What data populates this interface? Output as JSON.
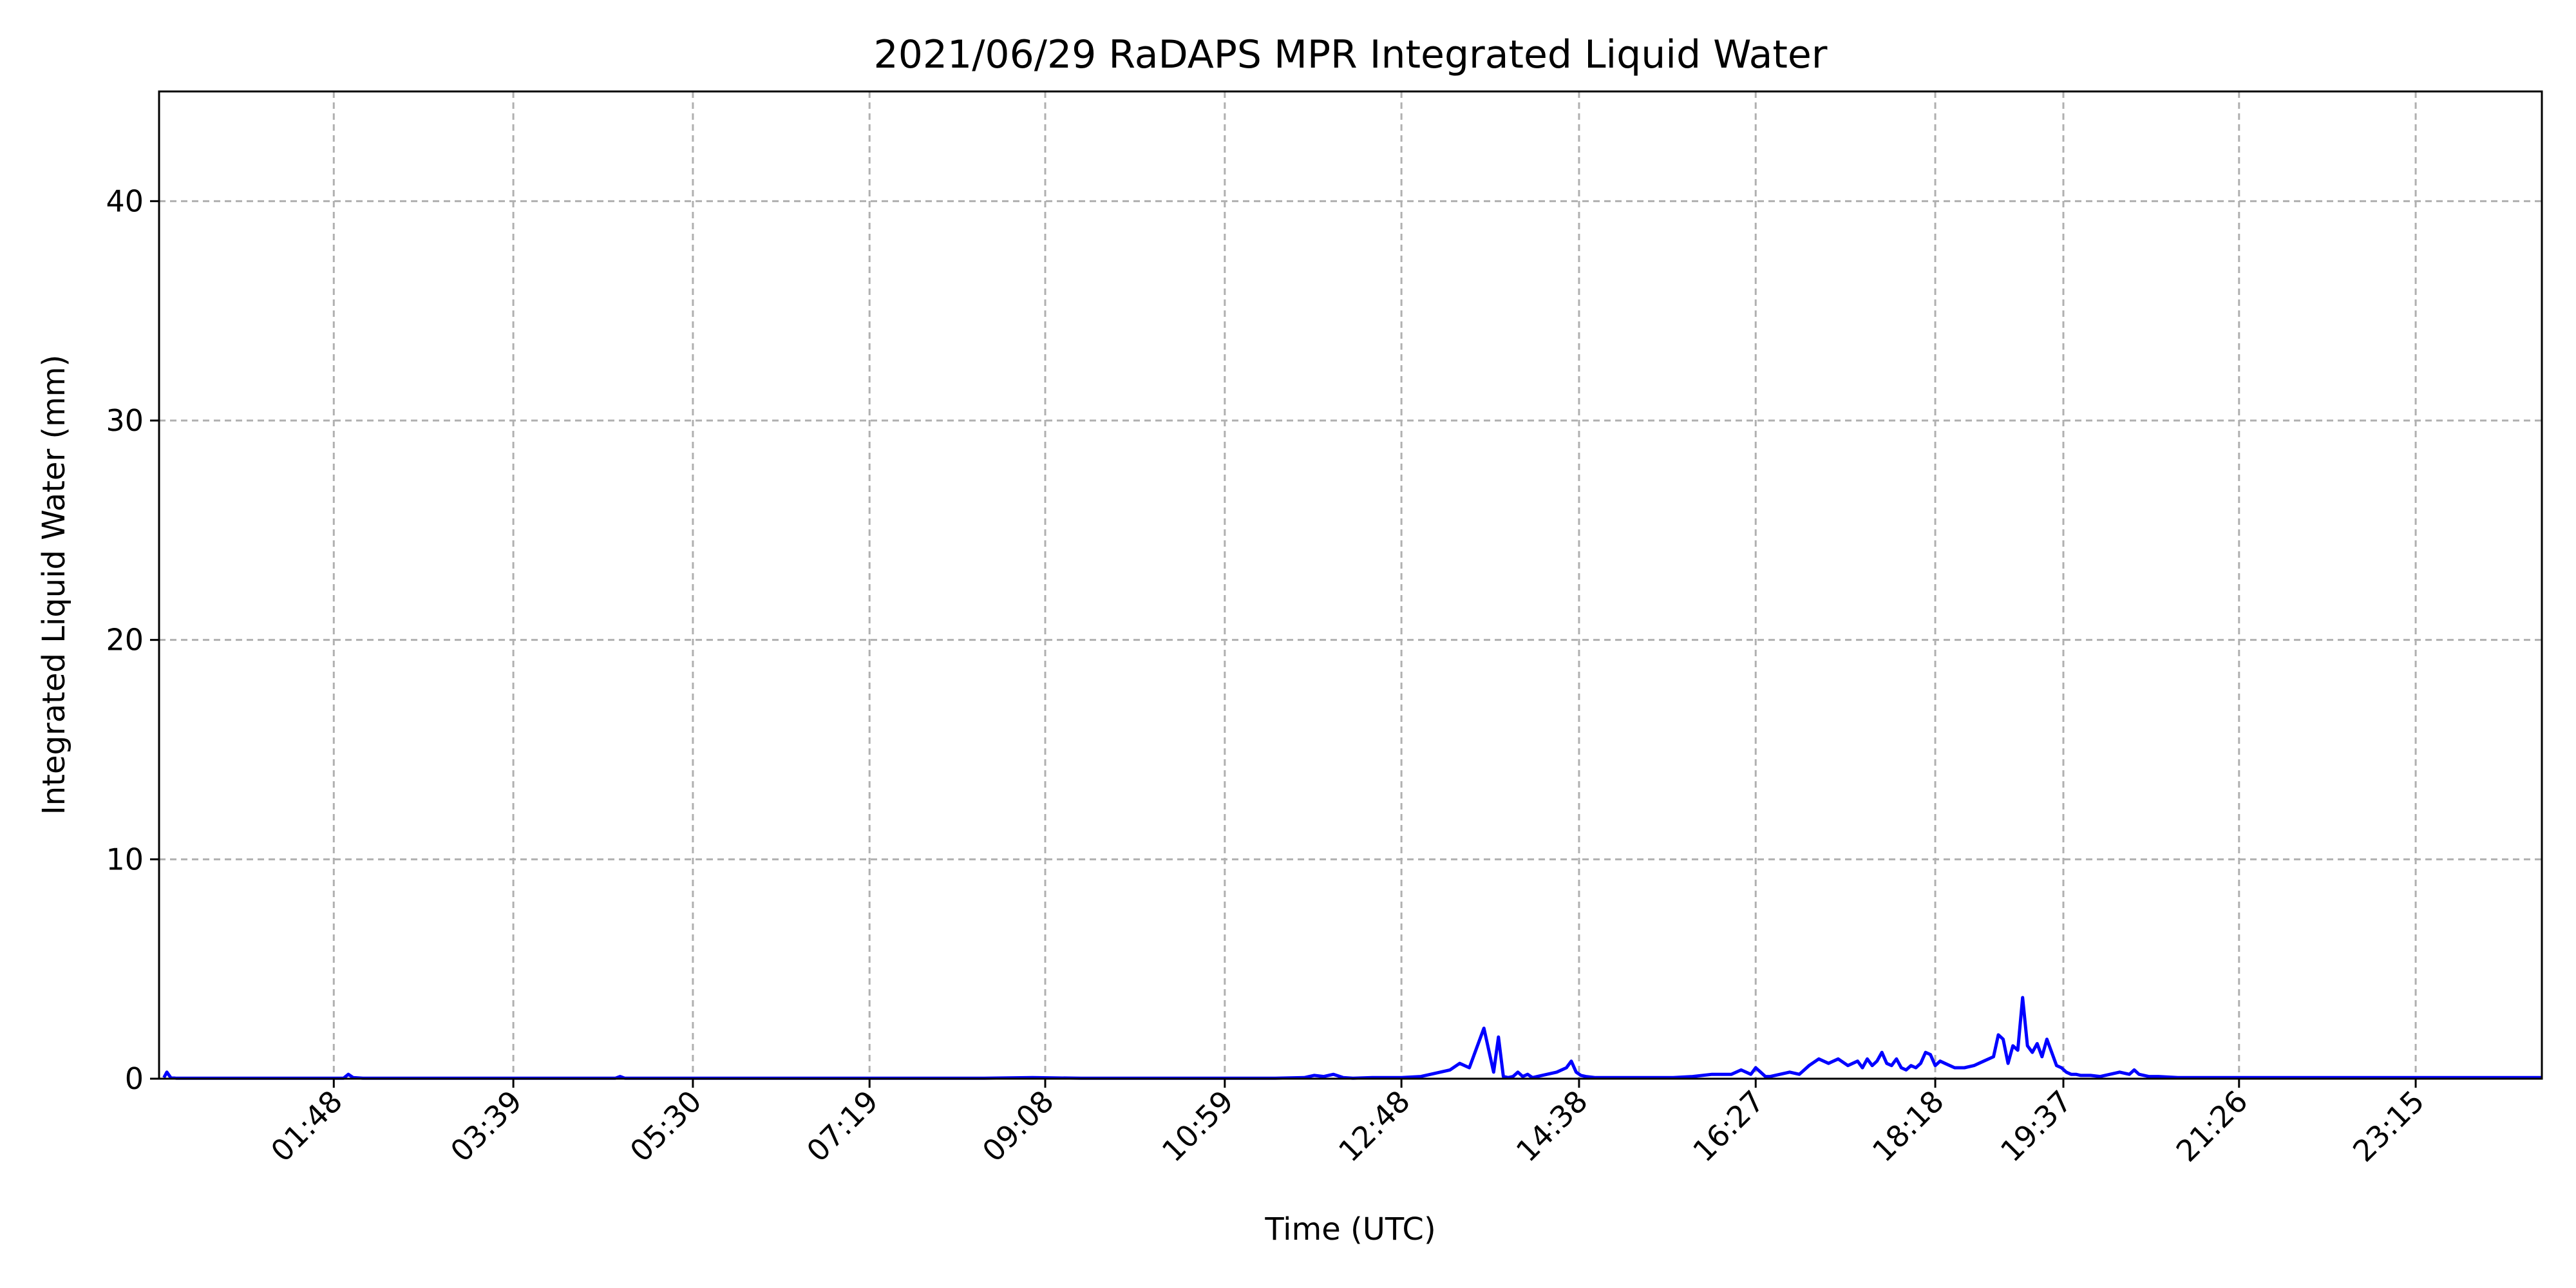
{
  "chart_data": {
    "type": "line",
    "title": "2021/06/29 RaDAPS MPR Integrated Liquid Water",
    "xlabel": "Time (UTC)",
    "ylabel": "Integrated Liquid Water (mm)",
    "x_unit": "hours UTC",
    "xlim": [
      0.0,
      24.55
    ],
    "ylim": [
      0,
      45
    ],
    "yticks": [
      0,
      10,
      20,
      30,
      40
    ],
    "xticks": [
      {
        "label": "01:48",
        "hour": 1.8
      },
      {
        "label": "03:39",
        "hour": 3.65
      },
      {
        "label": "05:30",
        "hour": 5.5
      },
      {
        "label": "07:19",
        "hour": 7.32
      },
      {
        "label": "09:08",
        "hour": 9.13
      },
      {
        "label": "10:59",
        "hour": 10.98
      },
      {
        "label": "12:48",
        "hour": 12.8
      },
      {
        "label": "14:38",
        "hour": 14.63
      },
      {
        "label": "16:27",
        "hour": 16.45
      },
      {
        "label": "18:18",
        "hour": 18.3
      },
      {
        "label": "19:37",
        "hour": 19.62
      },
      {
        "label": "21:26",
        "hour": 21.43
      },
      {
        "label": "23:15",
        "hour": 23.25
      }
    ],
    "grid": true,
    "series": [
      {
        "color": "#0000ff",
        "x": [
          0.05,
          0.08,
          0.12,
          0.18,
          0.5,
          1.0,
          1.5,
          1.9,
          1.95,
          2.0,
          2.1,
          2.5,
          3.0,
          3.5,
          4.0,
          4.5,
          4.7,
          4.75,
          4.8,
          5.0,
          5.5,
          6.0,
          6.5,
          7.0,
          7.5,
          8.0,
          8.5,
          9.0,
          9.5,
          10.0,
          10.5,
          11.0,
          11.5,
          11.8,
          11.9,
          12.0,
          12.1,
          12.2,
          12.3,
          12.5,
          12.8,
          13.0,
          13.3,
          13.4,
          13.5,
          13.65,
          13.75,
          13.8,
          13.85,
          13.9,
          13.95,
          14.0,
          14.05,
          14.1,
          14.15,
          14.2,
          14.3,
          14.4,
          14.5,
          14.55,
          14.6,
          14.65,
          14.7,
          14.8,
          14.9,
          15.0,
          15.2,
          15.4,
          15.6,
          15.8,
          16.0,
          16.2,
          16.3,
          16.4,
          16.45,
          16.5,
          16.55,
          16.6,
          16.7,
          16.8,
          16.9,
          17.0,
          17.1,
          17.2,
          17.3,
          17.4,
          17.5,
          17.55,
          17.6,
          17.65,
          17.7,
          17.75,
          17.8,
          17.85,
          17.9,
          17.95,
          18.0,
          18.05,
          18.1,
          18.15,
          18.2,
          18.25,
          18.3,
          18.35,
          18.4,
          18.5,
          18.6,
          18.7,
          18.8,
          18.9,
          18.95,
          19.0,
          19.05,
          19.1,
          19.15,
          19.2,
          19.25,
          19.3,
          19.35,
          19.4,
          19.45,
          19.5,
          19.55,
          19.6,
          19.65,
          19.7,
          19.75,
          19.8,
          19.9,
          20.0,
          20.1,
          20.2,
          20.3,
          20.35,
          20.4,
          20.5,
          20.6,
          20.8,
          21.0,
          21.5,
          22.0,
          22.5,
          23.0,
          23.5,
          24.0,
          24.55
        ],
        "y": [
          0.05,
          0.3,
          0.05,
          0.02,
          0.02,
          0.02,
          0.02,
          0.02,
          0.2,
          0.05,
          0.02,
          0.02,
          0.02,
          0.02,
          0.02,
          0.02,
          0.02,
          0.1,
          0.02,
          0.02,
          0.02,
          0.02,
          0.02,
          0.02,
          0.02,
          0.02,
          0.02,
          0.05,
          0.02,
          0.02,
          0.02,
          0.02,
          0.02,
          0.05,
          0.15,
          0.1,
          0.2,
          0.05,
          0.02,
          0.05,
          0.05,
          0.1,
          0.4,
          0.7,
          0.5,
          2.3,
          0.3,
          1.9,
          0.1,
          0.05,
          0.1,
          0.3,
          0.1,
          0.2,
          0.05,
          0.1,
          0.2,
          0.3,
          0.5,
          0.8,
          0.3,
          0.15,
          0.1,
          0.05,
          0.05,
          0.05,
          0.05,
          0.05,
          0.05,
          0.1,
          0.2,
          0.2,
          0.4,
          0.2,
          0.5,
          0.3,
          0.1,
          0.1,
          0.2,
          0.3,
          0.2,
          0.6,
          0.9,
          0.7,
          0.9,
          0.6,
          0.8,
          0.5,
          0.9,
          0.6,
          0.8,
          1.2,
          0.7,
          0.6,
          0.9,
          0.5,
          0.4,
          0.6,
          0.5,
          0.7,
          1.2,
          1.1,
          0.6,
          0.8,
          0.7,
          0.5,
          0.5,
          0.6,
          0.8,
          1.0,
          2.0,
          1.8,
          0.7,
          1.5,
          1.3,
          3.7,
          1.5,
          1.2,
          1.6,
          1.0,
          1.8,
          1.2,
          0.6,
          0.5,
          0.3,
          0.2,
          0.2,
          0.15,
          0.15,
          0.1,
          0.2,
          0.3,
          0.2,
          0.4,
          0.2,
          0.1,
          0.1,
          0.05,
          0.05,
          0.05,
          0.05,
          0.05,
          0.05,
          0.05,
          0.05,
          0.05
        ]
      }
    ]
  }
}
